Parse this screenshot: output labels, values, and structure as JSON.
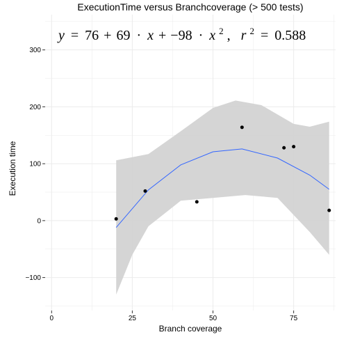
{
  "chart_data": {
    "type": "scatter",
    "title": "ExecutionTime versus Branchcoverage (> 500 tests)",
    "xlabel": "Branch coverage",
    "ylabel": "Execution time",
    "xlim": [
      -2,
      88
    ],
    "ylim": [
      -158,
      362
    ],
    "xticks": [
      0,
      25,
      50,
      75
    ],
    "yticks": [
      -100,
      0,
      100,
      200,
      300
    ],
    "grid": true,
    "background": "#ffffff",
    "grid_color": "#ebebeb",
    "points": [
      {
        "x": 20,
        "y": 3
      },
      {
        "x": 29,
        "y": 52
      },
      {
        "x": 45,
        "y": 33
      },
      {
        "x": 59,
        "y": 164
      },
      {
        "x": 72,
        "y": 128
      },
      {
        "x": 75,
        "y": 130
      },
      {
        "x": 86,
        "y": 18
      }
    ],
    "point_color": "#000000",
    "fit": {
      "type": "quadratic",
      "color": "#3366ff",
      "band_color": "#d3d3d3",
      "curve": [
        {
          "x": 20,
          "y": -12
        },
        {
          "x": 30,
          "y": 54
        },
        {
          "x": 40,
          "y": 98
        },
        {
          "x": 50,
          "y": 121
        },
        {
          "x": 59,
          "y": 126
        },
        {
          "x": 70,
          "y": 110
        },
        {
          "x": 80,
          "y": 80
        },
        {
          "x": 86,
          "y": 55
        }
      ],
      "upper": [
        {
          "x": 20,
          "y": 106
        },
        {
          "x": 30,
          "y": 117
        },
        {
          "x": 40,
          "y": 157
        },
        {
          "x": 50,
          "y": 198
        },
        {
          "x": 57,
          "y": 211
        },
        {
          "x": 65,
          "y": 203
        },
        {
          "x": 75,
          "y": 170
        },
        {
          "x": 80,
          "y": 165
        },
        {
          "x": 86,
          "y": 174
        }
      ],
      "lower": [
        {
          "x": 20,
          "y": -130
        },
        {
          "x": 25,
          "y": -60
        },
        {
          "x": 30,
          "y": -10
        },
        {
          "x": 40,
          "y": 35
        },
        {
          "x": 50,
          "y": 40
        },
        {
          "x": 60,
          "y": 45
        },
        {
          "x": 70,
          "y": 40
        },
        {
          "x": 80,
          "y": -20
        },
        {
          "x": 86,
          "y": -60
        }
      ]
    },
    "annotation": {
      "y_var": "y",
      "eq": "=",
      "c0": "76",
      "plus1": "+",
      "c1": "69",
      "dot1": "·",
      "x1": "x",
      "plus2": "+",
      "c2": "−98",
      "dot2": "·",
      "x2": "x",
      "exp": "2",
      "comma": ",",
      "r_var": "r",
      "r_exp": "2",
      "eq2": "=",
      "r2": "0.588"
    }
  }
}
